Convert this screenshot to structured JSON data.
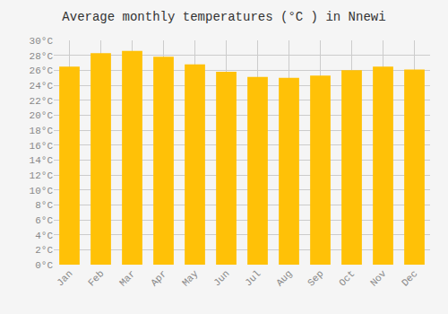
{
  "chart_data": {
    "type": "bar",
    "title": "Average monthly temperatures (°C ) in Nnewi",
    "categories": [
      "Jan",
      "Feb",
      "Mar",
      "Apr",
      "May",
      "Jun",
      "Jul",
      "Aug",
      "Sep",
      "Oct",
      "Nov",
      "Dec"
    ],
    "values": [
      26.5,
      28.3,
      28.6,
      27.8,
      26.8,
      25.8,
      25.1,
      25.0,
      25.3,
      26.0,
      26.5,
      26.1
    ],
    "color": "#FFC107",
    "ylim": [
      0,
      30
    ],
    "yticks": [
      {
        "value": 0,
        "label": "0°C"
      },
      {
        "value": 2,
        "label": "2°C"
      },
      {
        "value": 4,
        "label": "4°C"
      },
      {
        "value": 6,
        "label": "6°C"
      },
      {
        "value": 8,
        "label": "8°C"
      },
      {
        "value": 10,
        "label": "10°C"
      },
      {
        "value": 12,
        "label": "12°C"
      },
      {
        "value": 14,
        "label": "14°C"
      },
      {
        "value": 16,
        "label": "16°C"
      },
      {
        "value": 18,
        "label": "18°C"
      },
      {
        "value": 20,
        "label": "20°C"
      },
      {
        "value": 22,
        "label": "22°C"
      },
      {
        "value": 24,
        "label": "24°C"
      },
      {
        "value": 26,
        "label": "26°C"
      },
      {
        "value": 28,
        "label": "28°C"
      },
      {
        "value": 30,
        "label": "30°C"
      }
    ],
    "grid": true
  }
}
